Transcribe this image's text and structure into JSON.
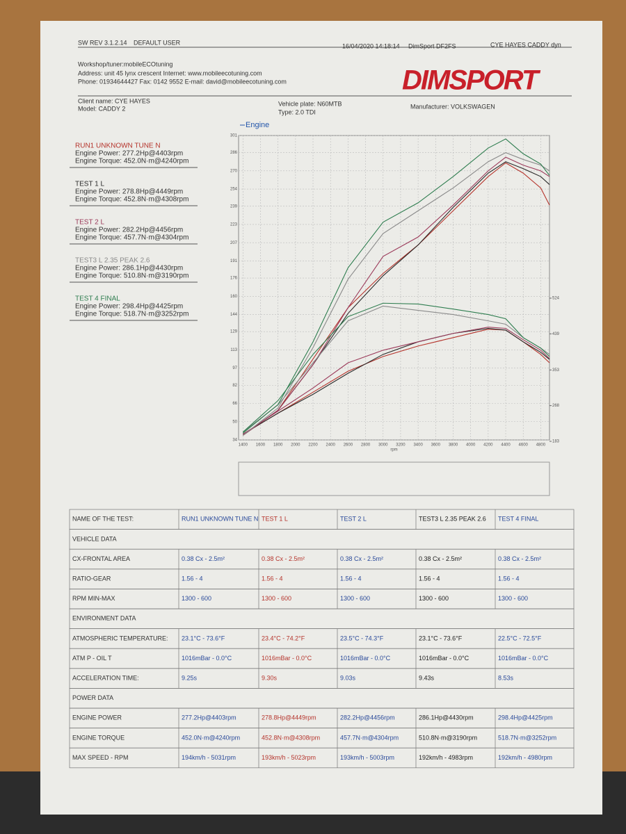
{
  "header": {
    "sw_rev": "SW REV 3.1.2.14",
    "user": "DEFAULT USER",
    "date": "16/04/2020 14:18:14",
    "device": "DimSport DF2FS",
    "job": "CYE HAYES CADDY dyn"
  },
  "workshop": [
    "Workshop/tuner:mobileECOtuning",
    "Address: unit 45 lynx crescent Internet: www.mobileecotuning.com",
    "Phone: 01934644427 Fax: 0142 9552 E-mail: david@mobileecotuning.com"
  ],
  "logo": "DIMSPORT",
  "client": {
    "name": "Client name: CYE HAYES",
    "model": "Model: CADDY 2",
    "plate": "Vehicle plate: N60MTB",
    "type": "Type: 2.0 TDI",
    "manufacturer": "Manufacturer: VOLKSWAGEN"
  },
  "chart_data": {
    "type": "line",
    "title": "Engine",
    "x_label": "rpm",
    "x": [
      1400,
      1800,
      2200,
      2600,
      3000,
      3400,
      3800,
      4200,
      4400,
      4600,
      4800,
      4900
    ],
    "xlim": [
      1350,
      4900
    ],
    "xticks": [
      1400,
      1600,
      1800,
      2000,
      2200,
      2400,
      2600,
      2800,
      3000,
      3200,
      3400,
      3600,
      3800,
      4000,
      4200,
      4400,
      4600,
      4800
    ],
    "ylim": [
      34,
      301
    ],
    "yticks": [
      34,
      50,
      66,
      82,
      97,
      113,
      129,
      144,
      160,
      176,
      191,
      207,
      223,
      239,
      254,
      270,
      286,
      301
    ],
    "y2lim": [
      183,
      524
    ],
    "y2ticks": [
      183,
      268,
      353,
      439,
      524
    ],
    "grid": true,
    "series": [
      {
        "name": "RUN1 UNKNOWN TUNE N",
        "color": "#b5342c",
        "power": "Engine Power: 277.2Hp@4403rpm",
        "torque": "Engine Torque: 452.0N·m@4240rpm",
        "values": [
          38,
          60,
          105,
          150,
          180,
          205,
          235,
          265,
          277,
          268,
          255,
          240
        ],
        "y2_values": [
          200,
          250,
          300,
          350,
          385,
          410,
          430,
          450,
          448,
          420,
          390,
          370
        ]
      },
      {
        "name": "TEST 1 L",
        "color": "#2a2a2a",
        "power": "Engine Power: 278.8Hp@4449rpm",
        "torque": "Engine Torque: 452.8N·m@4308rpm",
        "values": [
          38,
          60,
          100,
          145,
          178,
          205,
          238,
          268,
          278,
          272,
          265,
          258
        ],
        "y2_values": [
          200,
          250,
          295,
          345,
          390,
          420,
          440,
          452,
          448,
          420,
          395,
          378
        ]
      },
      {
        "name": "TEST 2 L",
        "color": "#9b3a5a",
        "power": "Engine Power: 282.2Hp@4456rpm",
        "torque": "Engine Torque: 457.7N·m@4304rpm",
        "values": [
          38,
          60,
          100,
          150,
          195,
          212,
          240,
          270,
          282,
          275,
          270,
          265
        ],
        "y2_values": [
          200,
          255,
          310,
          370,
          400,
          420,
          440,
          455,
          452,
          425,
          400,
          380
        ]
      },
      {
        "name": "TEST3 L 2.35 PEAK 2.6",
        "color": "#8a8a8a",
        "power": "Engine Power: 286.1Hp@4430rpm",
        "torque": "Engine Torque: 510.8N·m@3190rpm",
        "values": [
          38,
          62,
          115,
          175,
          215,
          235,
          255,
          278,
          286,
          280,
          275,
          270
        ],
        "y2_values": [
          205,
          270,
          370,
          470,
          505,
          495,
          485,
          470,
          462,
          430,
          405,
          390
        ]
      },
      {
        "name": "TEST 4 FINAL",
        "color": "#2e7d4f",
        "power": "Engine Power: 298.4Hp@4425rpm",
        "torque": "Engine Torque: 518.7N·m@3252rpm",
        "values": [
          40,
          65,
          120,
          185,
          225,
          242,
          265,
          290,
          298,
          285,
          276,
          266
        ],
        "y2_values": [
          205,
          280,
          390,
          480,
          512,
          510,
          498,
          485,
          475,
          430,
          405,
          385
        ]
      }
    ]
  },
  "table": {
    "rows": [
      [
        "NAME OF THE TEST:",
        "RUN1 UNKNOWN TUNE N",
        "TEST 1 L",
        "TEST 2 L",
        "TEST3 L 2.35 PEAK 2.6",
        "TEST 4 FINAL"
      ],
      [
        "VEHICLE DATA"
      ],
      [
        "CX-FRONTAL AREA",
        "0.38 Cx - 2.5m²",
        "0.38 Cx - 2.5m²",
        "0.38 Cx - 2.5m²",
        "0.38 Cx - 2.5m²",
        "0.38 Cx - 2.5m²"
      ],
      [
        "RATIO-GEAR",
        "1.56 - 4",
        "1.56 - 4",
        "1.56 - 4",
        "1.56 - 4",
        "1.56 - 4"
      ],
      [
        "RPM MIN-MAX",
        "1300 - 600",
        "1300 - 600",
        "1300 - 600",
        "1300 - 600",
        "1300 - 600"
      ],
      [
        "ENVIRONMENT DATA"
      ],
      [
        "ATMOSPHERIC TEMPERATURE:",
        "23.1°C - 73.6°F",
        "23.4°C - 74.2°F",
        "23.5°C - 74.3°F",
        "23.1°C - 73.6°F",
        "22.5°C - 72.5°F"
      ],
      [
        "ATM P - OIL T",
        "1016mBar - 0.0°C",
        "1016mBar - 0.0°C",
        "1016mBar - 0.0°C",
        "1016mBar - 0.0°C",
        "1016mBar - 0.0°C"
      ],
      [
        "ACCELERATION TIME:",
        "9.25s",
        "9.30s",
        "9.03s",
        "9.43s",
        "8.53s"
      ],
      [
        "POWER DATA"
      ],
      [
        "ENGINE POWER",
        "277.2Hp@4403rpm",
        "278.8Hp@4449rpm",
        "282.2Hp@4456rpm",
        "286.1Hp@4430rpm",
        "298.4Hp@4425rpm"
      ],
      [
        "ENGINE TORQUE",
        "452.0N·m@4240rpm",
        "452.8N·m@4308rpm",
        "457.7N·m@4304rpm",
        "510.8N·m@3190rpm",
        "518.7N·m@3252rpm"
      ],
      [
        "MAX SPEED - RPM",
        "194km/h - 5031rpm",
        "193km/h - 5023rpm",
        "193km/h - 5003rpm",
        "192km/h - 4983rpm",
        "192km/h - 4980rpm"
      ]
    ]
  }
}
